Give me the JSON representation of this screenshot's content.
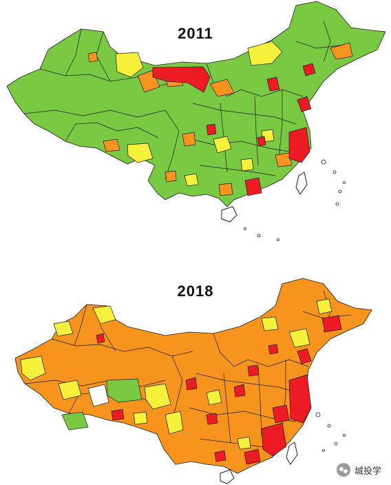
{
  "maps": [
    {
      "title": "2011",
      "colors": {
        "low": "#7ac943",
        "mid_low": "#f5f03a",
        "mid_high": "#f7941d",
        "high": "#ed1c24"
      }
    },
    {
      "title": "2018",
      "colors": {
        "low": "#7ac943",
        "mid_low": "#f5f03a",
        "mid_high": "#f7941d",
        "high": "#ed1c24"
      }
    }
  ],
  "watermark": {
    "text": "城投学",
    "icon": "wechat-icon"
  }
}
